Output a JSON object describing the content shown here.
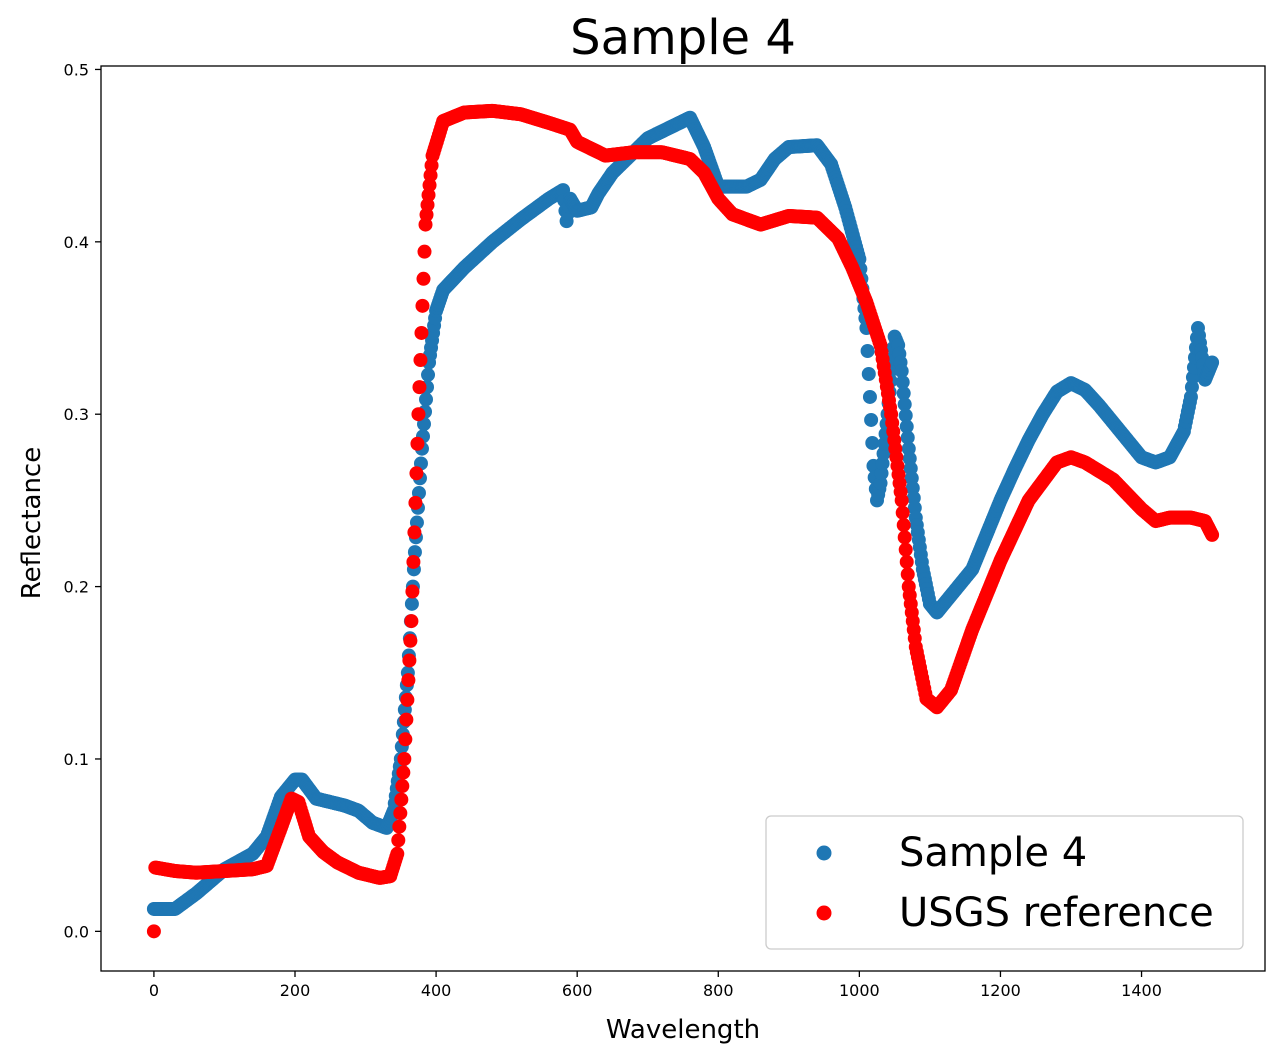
{
  "chart_data": {
    "type": "scatter",
    "title": "Sample 4",
    "xlabel": "Wavelength",
    "ylabel": "Reflectance",
    "xlim": [
      -75,
      1575
    ],
    "ylim": [
      -0.023,
      0.502
    ],
    "xticks": [
      0,
      200,
      400,
      600,
      800,
      1000,
      1200,
      1400
    ],
    "yticks": [
      0.0,
      0.1,
      0.2,
      0.3,
      0.4,
      0.5
    ],
    "grid": false,
    "legend_position": "lower-right",
    "series": [
      {
        "name": "Sample 4",
        "color": "#1f77b4",
        "points": [
          [
            0,
            0.013
          ],
          [
            30,
            0.013
          ],
          [
            60,
            0.022
          ],
          [
            100,
            0.036
          ],
          [
            140,
            0.045
          ],
          [
            160,
            0.055
          ],
          [
            180,
            0.078
          ],
          [
            200,
            0.088
          ],
          [
            210,
            0.088
          ],
          [
            230,
            0.077
          ],
          [
            250,
            0.075
          ],
          [
            270,
            0.073
          ],
          [
            290,
            0.07
          ],
          [
            310,
            0.063
          ],
          [
            330,
            0.06
          ],
          [
            340,
            0.07
          ],
          [
            350,
            0.1
          ],
          [
            360,
            0.15
          ],
          [
            370,
            0.22
          ],
          [
            380,
            0.28
          ],
          [
            390,
            0.33
          ],
          [
            400,
            0.36
          ],
          [
            410,
            0.372
          ],
          [
            440,
            0.385
          ],
          [
            480,
            0.4
          ],
          [
            520,
            0.413
          ],
          [
            560,
            0.425
          ],
          [
            580,
            0.43
          ],
          [
            585,
            0.412
          ],
          [
            590,
            0.425
          ],
          [
            600,
            0.418
          ],
          [
            620,
            0.42
          ],
          [
            630,
            0.428
          ],
          [
            650,
            0.44
          ],
          [
            700,
            0.46
          ],
          [
            740,
            0.468
          ],
          [
            760,
            0.472
          ],
          [
            780,
            0.455
          ],
          [
            800,
            0.432
          ],
          [
            840,
            0.432
          ],
          [
            860,
            0.436
          ],
          [
            880,
            0.448
          ],
          [
            900,
            0.455
          ],
          [
            940,
            0.456
          ],
          [
            960,
            0.445
          ],
          [
            980,
            0.42
          ],
          [
            1000,
            0.39
          ],
          [
            1010,
            0.35
          ],
          [
            1015,
            0.31
          ],
          [
            1020,
            0.27
          ],
          [
            1025,
            0.25
          ],
          [
            1030,
            0.26
          ],
          [
            1040,
            0.3
          ],
          [
            1050,
            0.345
          ],
          [
            1055,
            0.34
          ],
          [
            1060,
            0.325
          ],
          [
            1070,
            0.28
          ],
          [
            1080,
            0.24
          ],
          [
            1090,
            0.21
          ],
          [
            1100,
            0.19
          ],
          [
            1110,
            0.185
          ],
          [
            1120,
            0.19
          ],
          [
            1140,
            0.2
          ],
          [
            1160,
            0.21
          ],
          [
            1180,
            0.23
          ],
          [
            1200,
            0.25
          ],
          [
            1220,
            0.268
          ],
          [
            1240,
            0.285
          ],
          [
            1260,
            0.3
          ],
          [
            1280,
            0.313
          ],
          [
            1300,
            0.318
          ],
          [
            1320,
            0.314
          ],
          [
            1340,
            0.305
          ],
          [
            1360,
            0.295
          ],
          [
            1380,
            0.285
          ],
          [
            1400,
            0.275
          ],
          [
            1420,
            0.272
          ],
          [
            1440,
            0.275
          ],
          [
            1460,
            0.29
          ],
          [
            1470,
            0.31
          ],
          [
            1480,
            0.35
          ],
          [
            1490,
            0.32
          ],
          [
            1500,
            0.33
          ]
        ]
      },
      {
        "name": "USGS reference",
        "color": "#ff0000",
        "points": [
          [
            0,
            0.0
          ],
          [
            2,
            0.037
          ],
          [
            30,
            0.035
          ],
          [
            60,
            0.034
          ],
          [
            100,
            0.035
          ],
          [
            140,
            0.036
          ],
          [
            160,
            0.038
          ],
          [
            180,
            0.06
          ],
          [
            195,
            0.077
          ],
          [
            205,
            0.075
          ],
          [
            220,
            0.055
          ],
          [
            240,
            0.046
          ],
          [
            260,
            0.04
          ],
          [
            290,
            0.034
          ],
          [
            320,
            0.031
          ],
          [
            335,
            0.032
          ],
          [
            345,
            0.045
          ],
          [
            355,
            0.1
          ],
          [
            365,
            0.18
          ],
          [
            375,
            0.3
          ],
          [
            385,
            0.41
          ],
          [
            395,
            0.45
          ],
          [
            410,
            0.47
          ],
          [
            440,
            0.475
          ],
          [
            480,
            0.476
          ],
          [
            520,
            0.474
          ],
          [
            560,
            0.469
          ],
          [
            590,
            0.465
          ],
          [
            600,
            0.458
          ],
          [
            640,
            0.45
          ],
          [
            680,
            0.452
          ],
          [
            720,
            0.452
          ],
          [
            760,
            0.448
          ],
          [
            780,
            0.44
          ],
          [
            800,
            0.425
          ],
          [
            820,
            0.416
          ],
          [
            860,
            0.41
          ],
          [
            900,
            0.415
          ],
          [
            940,
            0.414
          ],
          [
            970,
            0.402
          ],
          [
            990,
            0.385
          ],
          [
            1010,
            0.365
          ],
          [
            1030,
            0.34
          ],
          [
            1045,
            0.3
          ],
          [
            1060,
            0.25
          ],
          [
            1070,
            0.2
          ],
          [
            1080,
            0.165
          ],
          [
            1095,
            0.135
          ],
          [
            1110,
            0.13
          ],
          [
            1130,
            0.14
          ],
          [
            1160,
            0.175
          ],
          [
            1200,
            0.215
          ],
          [
            1240,
            0.25
          ],
          [
            1280,
            0.272
          ],
          [
            1300,
            0.275
          ],
          [
            1320,
            0.272
          ],
          [
            1360,
            0.262
          ],
          [
            1400,
            0.245
          ],
          [
            1420,
            0.238
          ],
          [
            1440,
            0.24
          ],
          [
            1470,
            0.24
          ],
          [
            1490,
            0.238
          ],
          [
            1500,
            0.23
          ]
        ]
      }
    ]
  }
}
